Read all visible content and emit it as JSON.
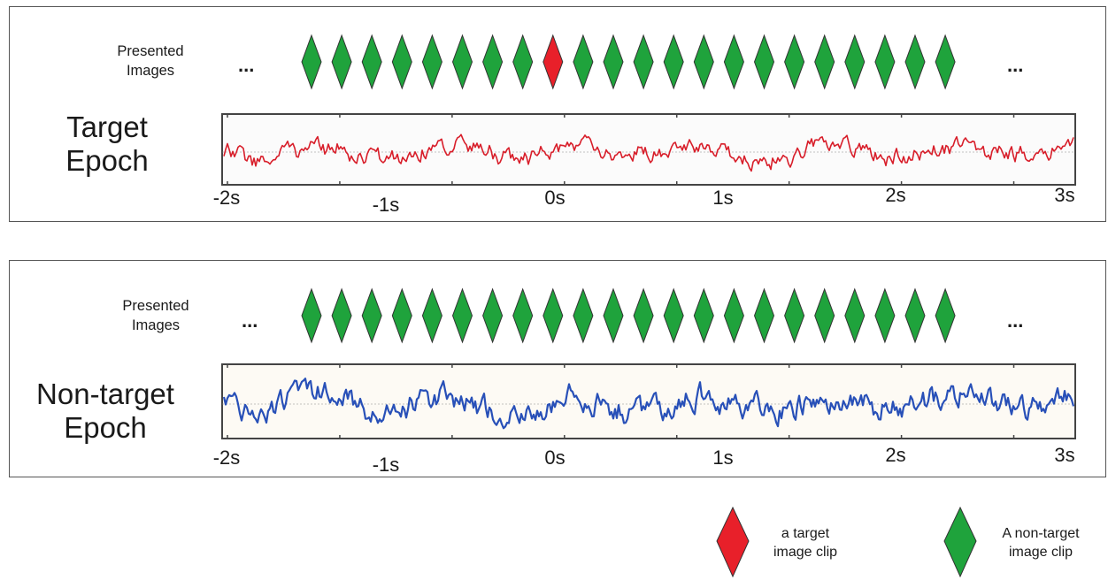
{
  "target_panel": {
    "presented_label": "Presented\nImages",
    "ellipsis_left": "...",
    "ellipsis_right": "...",
    "epoch_label": "Target\nEpoch",
    "target_index": 8,
    "diamond_count": 22
  },
  "nontarget_panel": {
    "presented_label": "Presented\nImages",
    "ellipsis_left": "...",
    "ellipsis_right": "...",
    "epoch_label": "Non-target\nEpoch",
    "diamond_count": 22
  },
  "time_ticks": [
    "-2s",
    "-1s",
    "0s",
    "1s",
    "2s",
    "3s"
  ],
  "legend": {
    "target_text": "a target\nimage clip",
    "nontarget_text": "A non-target\nimage clip"
  },
  "colors": {
    "target_diamond": "#e8202a",
    "nontarget_diamond": "#1fa33c",
    "target_signal": "#d81e2a",
    "nontarget_signal": "#2850b8"
  }
}
